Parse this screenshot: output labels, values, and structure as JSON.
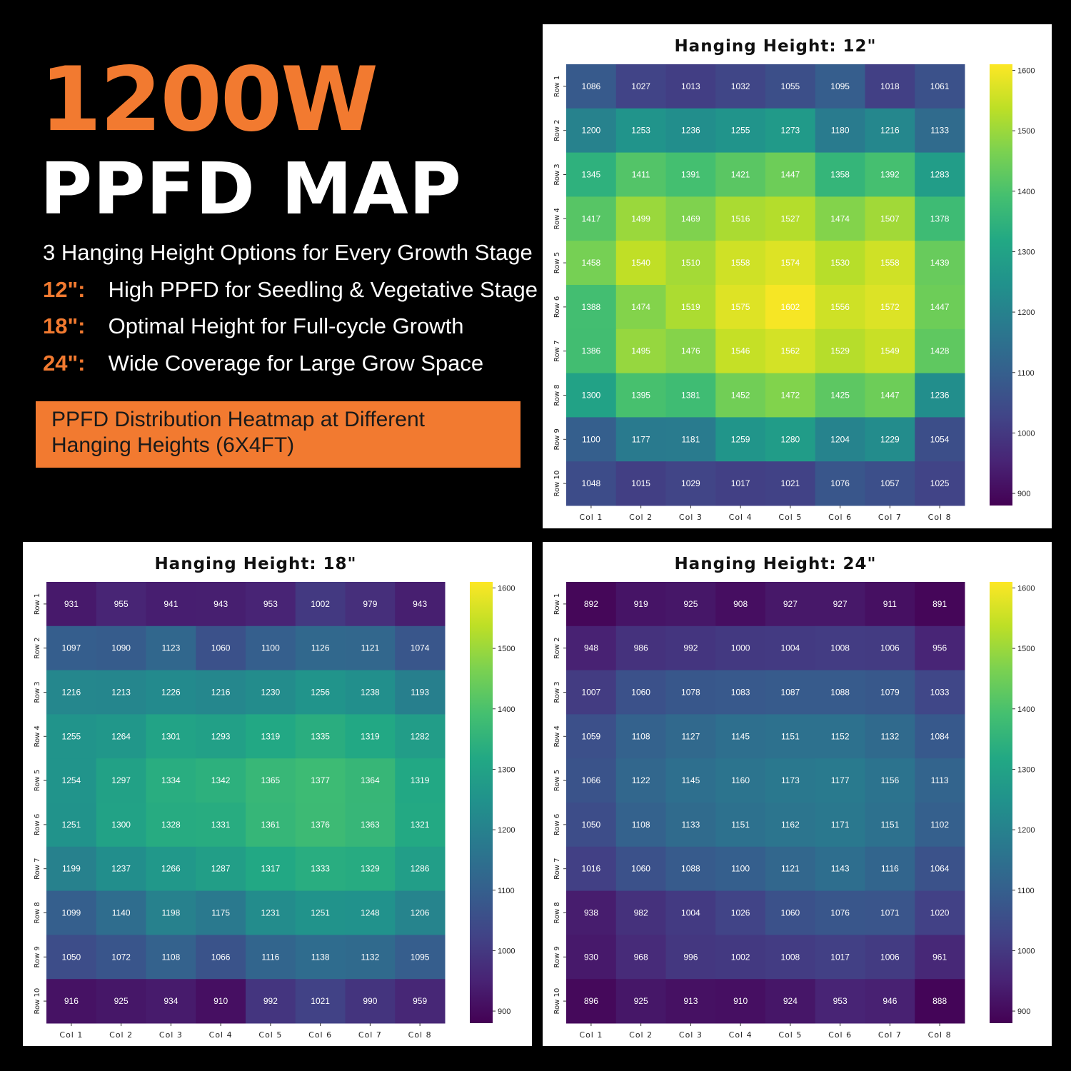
{
  "hero": {
    "title_line1": "1200W",
    "title_line2": "PPFD MAP",
    "subtitle": "3 Hanging Height Options for Every Growth Stage",
    "options": [
      {
        "height": "12\":",
        "text": "High PPFD for Seedling & Vegetative Stage"
      },
      {
        "height": "18\":",
        "text": "Optimal Height for Full-cycle Growth"
      },
      {
        "height": "24\":",
        "text": "Wide Coverage for Large Grow Space"
      }
    ],
    "banner_line1": "PPFD Distribution Heatmap at Different",
    "banner_line2": "Hanging Heights (6X4FT)"
  },
  "colors": {
    "accent": "#f27a30",
    "background": "#000000",
    "colormap": "viridis"
  },
  "chart_data": [
    {
      "type": "heatmap",
      "title": "Hanging Height: 12\"",
      "x_labels": [
        "Col 1",
        "Col 2",
        "Col 3",
        "Col 4",
        "Col 5",
        "Col 6",
        "Col 7",
        "Col 8"
      ],
      "y_labels": [
        "Row 1",
        "Row 2",
        "Row 3",
        "Row 4",
        "Row 5",
        "Row 6",
        "Row 7",
        "Row 8",
        "Row 9",
        "Row 10"
      ],
      "values": [
        [
          1086,
          1027,
          1013,
          1032,
          1055,
          1095,
          1018,
          1061
        ],
        [
          1200,
          1253,
          1236,
          1255,
          1273,
          1180,
          1216,
          1133
        ],
        [
          1345,
          1411,
          1391,
          1421,
          1447,
          1358,
          1392,
          1283
        ],
        [
          1417,
          1499,
          1469,
          1516,
          1527,
          1474,
          1507,
          1378
        ],
        [
          1458,
          1540,
          1510,
          1558,
          1574,
          1530,
          1558,
          1439
        ],
        [
          1388,
          1474,
          1519,
          1575,
          1602,
          1556,
          1572,
          1447
        ],
        [
          1386,
          1495,
          1476,
          1546,
          1562,
          1529,
          1549,
          1428
        ],
        [
          1300,
          1395,
          1381,
          1452,
          1472,
          1425,
          1447,
          1236
        ],
        [
          1100,
          1177,
          1181,
          1259,
          1280,
          1204,
          1229,
          1054
        ],
        [
          1048,
          1015,
          1029,
          1017,
          1021,
          1076,
          1057,
          1025
        ]
      ],
      "colorbar_range": [
        880,
        1610
      ],
      "colorbar_ticks": [
        900,
        1000,
        1100,
        1200,
        1300,
        1400,
        1500,
        1600
      ]
    },
    {
      "type": "heatmap",
      "title": "Hanging Height: 18\"",
      "x_labels": [
        "Col 1",
        "Col 2",
        "Col 3",
        "Col 4",
        "Col 5",
        "Col 6",
        "Col 7",
        "Col 8"
      ],
      "y_labels": [
        "Row 1",
        "Row 2",
        "Row 3",
        "Row 4",
        "Row 5",
        "Row 6",
        "Row 7",
        "Row 8",
        "Row 9",
        "Row 10"
      ],
      "values": [
        [
          931,
          955,
          941,
          943,
          953,
          1002,
          979,
          943
        ],
        [
          1097,
          1090,
          1123,
          1060,
          1100,
          1126,
          1121,
          1074
        ],
        [
          1216,
          1213,
          1226,
          1216,
          1230,
          1256,
          1238,
          1193
        ],
        [
          1255,
          1264,
          1301,
          1293,
          1319,
          1335,
          1319,
          1282
        ],
        [
          1254,
          1297,
          1334,
          1342,
          1365,
          1377,
          1364,
          1319
        ],
        [
          1251,
          1300,
          1328,
          1331,
          1361,
          1376,
          1363,
          1321
        ],
        [
          1199,
          1237,
          1266,
          1287,
          1317,
          1333,
          1329,
          1286
        ],
        [
          1099,
          1140,
          1198,
          1175,
          1231,
          1251,
          1248,
          1206
        ],
        [
          1050,
          1072,
          1108,
          1066,
          1116,
          1138,
          1132,
          1095
        ],
        [
          916,
          925,
          934,
          910,
          992,
          1021,
          990,
          959
        ]
      ],
      "colorbar_range": [
        880,
        1610
      ],
      "colorbar_ticks": [
        900,
        1000,
        1100,
        1200,
        1300,
        1400,
        1500,
        1600
      ]
    },
    {
      "type": "heatmap",
      "title": "Hanging Height: 24\"",
      "x_labels": [
        "Col 1",
        "Col 2",
        "Col 3",
        "Col 4",
        "Col 5",
        "Col 6",
        "Col 7",
        "Col 8"
      ],
      "y_labels": [
        "Row 1",
        "Row 2",
        "Row 3",
        "Row 4",
        "Row 5",
        "Row 6",
        "Row 7",
        "Row 8",
        "Row 9",
        "Row 10"
      ],
      "values": [
        [
          892,
          919,
          925,
          908,
          927,
          927,
          911,
          891
        ],
        [
          948,
          986,
          992,
          1000,
          1004,
          1008,
          1006,
          956
        ],
        [
          1007,
          1060,
          1078,
          1083,
          1087,
          1088,
          1079,
          1033
        ],
        [
          1059,
          1108,
          1127,
          1145,
          1151,
          1152,
          1132,
          1084
        ],
        [
          1066,
          1122,
          1145,
          1160,
          1173,
          1177,
          1156,
          1113
        ],
        [
          1050,
          1108,
          1133,
          1151,
          1162,
          1171,
          1151,
          1102
        ],
        [
          1016,
          1060,
          1088,
          1100,
          1121,
          1143,
          1116,
          1064
        ],
        [
          938,
          982,
          1004,
          1026,
          1060,
          1076,
          1071,
          1020
        ],
        [
          930,
          968,
          996,
          1002,
          1008,
          1017,
          1006,
          961
        ],
        [
          896,
          925,
          913,
          910,
          924,
          953,
          946,
          888
        ]
      ],
      "colorbar_range": [
        880,
        1610
      ],
      "colorbar_ticks": [
        900,
        1000,
        1100,
        1200,
        1300,
        1400,
        1500,
        1600
      ]
    }
  ]
}
